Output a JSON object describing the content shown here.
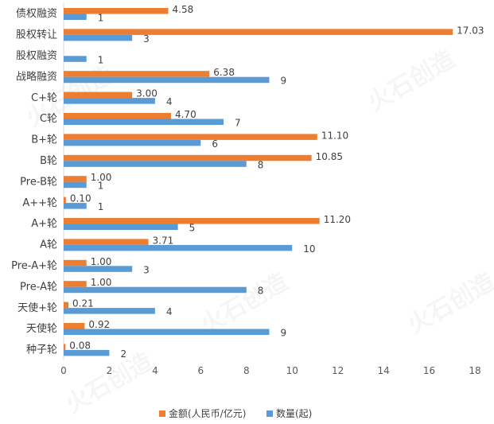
{
  "chart_data": {
    "type": "bar",
    "orientation": "horizontal",
    "categories": [
      "债权融资",
      "股权转让",
      "股权融资",
      "战略融资",
      "C+轮",
      "C轮",
      "B+轮",
      "B轮",
      "Pre-B轮",
      "A++轮",
      "A+轮",
      "A轮",
      "Pre-A+轮",
      "Pre-A轮",
      "天使+轮",
      "天使轮",
      "种子轮"
    ],
    "series": [
      {
        "name": "金额(人民币/亿元)",
        "color": "#ED7D31",
        "values": [
          4.58,
          17.03,
          null,
          6.38,
          3.0,
          4.7,
          11.1,
          10.85,
          1.0,
          0.1,
          11.2,
          3.71,
          1.0,
          1.0,
          0.21,
          0.92,
          0.08
        ],
        "labels": [
          "4.58",
          "17.03",
          "",
          "6.38",
          "3.00",
          "4.70",
          "11.10",
          "10.85",
          "1.00",
          "0.10",
          "11.20",
          "3.71",
          "1.00",
          "1.00",
          "0.21",
          "0.92",
          "0.08"
        ]
      },
      {
        "name": "数量(起)",
        "color": "#5B9BD5",
        "values": [
          1,
          3,
          1,
          9,
          4,
          7,
          6,
          8,
          1,
          1,
          5,
          10,
          3,
          8,
          4,
          9,
          2
        ],
        "labels": [
          "1",
          "3",
          "1",
          "9",
          "4",
          "7",
          "6",
          "8",
          "1",
          "1",
          "5",
          "10",
          "3",
          "8",
          "4",
          "9",
          "2"
        ]
      }
    ],
    "xlim": [
      0,
      18
    ],
    "xticks": [
      "0",
      "2",
      "4",
      "6",
      "8",
      "10",
      "12",
      "14",
      "16",
      "18"
    ],
    "grid": false,
    "legend_position": "bottom",
    "watermark": "火石创造"
  }
}
